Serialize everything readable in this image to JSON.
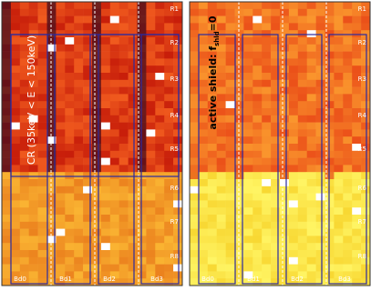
{
  "panels": [
    {
      "row_labels": [
        "R1",
        "R2",
        "R3",
        "R4",
        "R5",
        "R6",
        "R7",
        "R8"
      ],
      "board_labels": [
        "Bd0",
        "Bd1",
        "Bd2",
        "Bd3"
      ],
      "annotation": "CR (35keV < E < 150keV)"
    },
    {
      "row_labels": [
        "R1",
        "R2",
        "R3",
        "R4",
        "R5",
        "R6",
        "R7",
        "R8"
      ],
      "board_labels": [
        "Bd0",
        "Bd1",
        "Bd2",
        "Bd3"
      ],
      "annotation": {
        "text": "active shield: f",
        "subscript": "shld",
        "suffix": "=0"
      }
    }
  ]
}
